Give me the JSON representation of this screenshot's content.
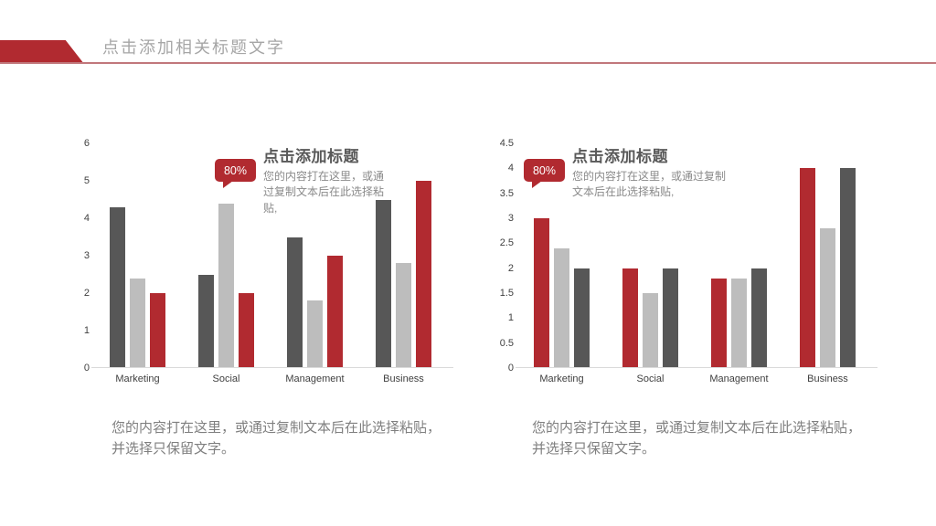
{
  "header": {
    "title": "点击添加相关标题文字"
  },
  "colors": {
    "accent_red": "#B12A30",
    "divider_red": "#C1777B",
    "dark_gray_series": "#575757",
    "light_gray_series": "#BDBDBD",
    "title_gray": "#A6A6A6",
    "body_gray": "#7F7F7F"
  },
  "chart_data": [
    {
      "type": "bar",
      "categories": [
        "Marketing",
        "Social",
        "Management",
        "Business"
      ],
      "series": [
        {
          "name": "dark-gray",
          "color": "#575757",
          "values": [
            4.3,
            2.5,
            3.5,
            4.5
          ]
        },
        {
          "name": "light-gray",
          "color": "#BDBDBD",
          "values": [
            2.4,
            4.4,
            1.8,
            2.8
          ]
        },
        {
          "name": "red",
          "color": "#B12A30",
          "values": [
            2.0,
            2.0,
            3.0,
            5.0
          ]
        }
      ],
      "ylim": [
        0,
        6
      ],
      "yticks": [
        6,
        5,
        4,
        3,
        2,
        1,
        0
      ],
      "grid": false,
      "legend": "none",
      "callout": {
        "badge": "80%",
        "title": "点击添加标题",
        "body": "您的内容打在这里，或通过复制文本后在此选择粘贴,"
      },
      "footer": "您的内容打在这里，或通过复制文本后在此选择粘贴，并选择只保留文字。"
    },
    {
      "type": "bar",
      "categories": [
        "Marketing",
        "Social",
        "Management",
        "Business"
      ],
      "series": [
        {
          "name": "red",
          "color": "#B12A30",
          "values": [
            3.0,
            2.0,
            1.8,
            4.0
          ]
        },
        {
          "name": "light-gray",
          "color": "#BDBDBD",
          "values": [
            2.4,
            1.5,
            1.8,
            2.8
          ]
        },
        {
          "name": "dark-gray",
          "color": "#575757",
          "values": [
            2.0,
            2.0,
            2.0,
            4.0
          ]
        }
      ],
      "ylim": [
        0,
        4.5
      ],
      "yticks": [
        4.5,
        4,
        3.5,
        3,
        2.5,
        2,
        1.5,
        1,
        0.5,
        0
      ],
      "grid": false,
      "legend": "none",
      "callout": {
        "badge": "80%",
        "title": "点击添加标题",
        "body": "您的内容打在这里，或通过复制文本后在此选择粘贴,"
      },
      "footer": "您的内容打在这里，或通过复制文本后在此选择粘贴，并选择只保留文字。"
    }
  ]
}
